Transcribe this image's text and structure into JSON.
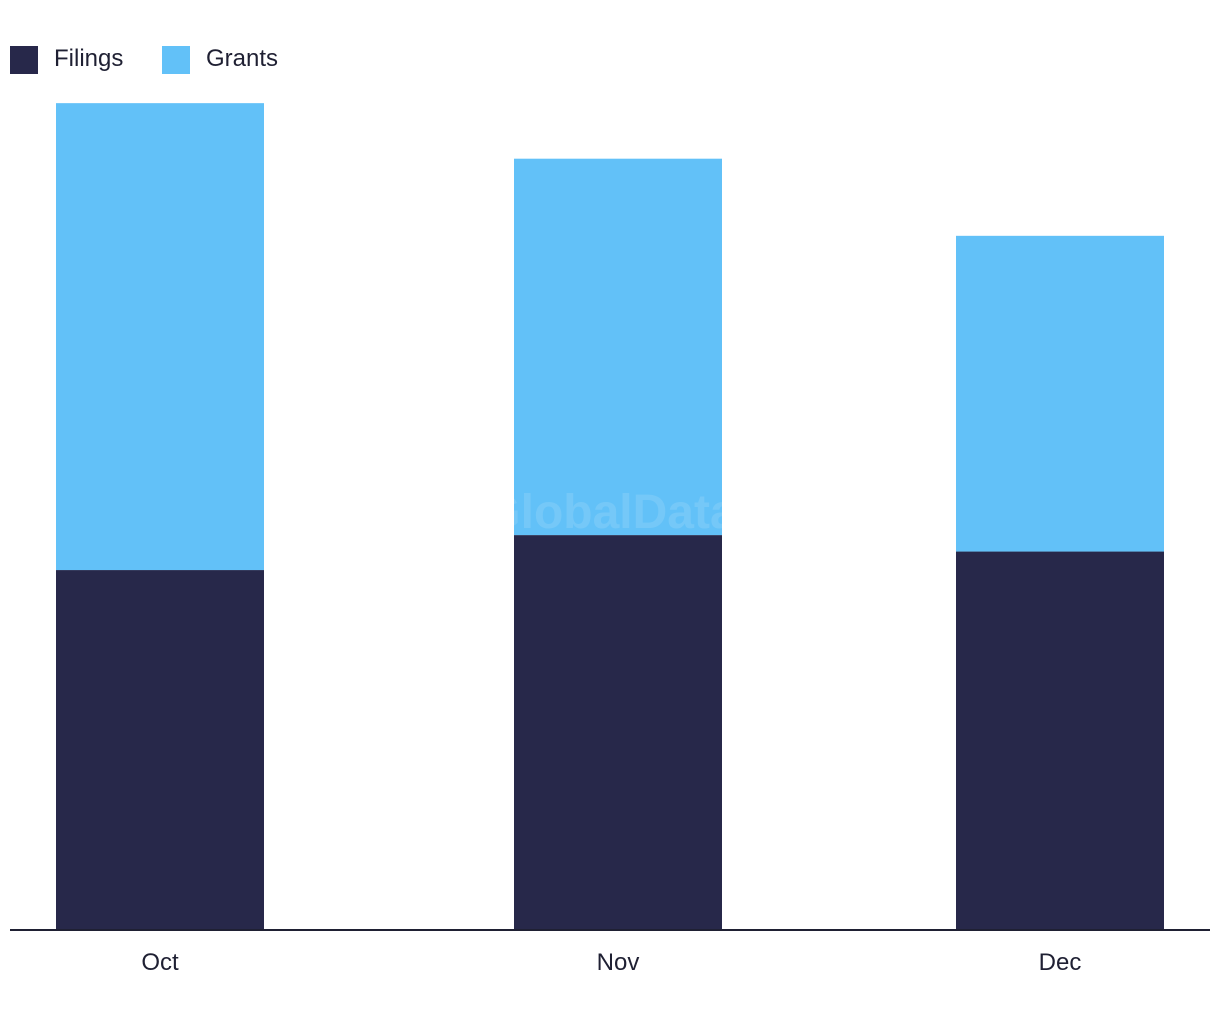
{
  "chart_data": {
    "type": "bar",
    "stacked": true,
    "categories": [
      "Oct",
      "Nov",
      "Dec"
    ],
    "series": [
      {
        "name": "Filings",
        "values": [
          35,
          38.4,
          36.8
        ],
        "color": "#27284a"
      },
      {
        "name": "Grants",
        "values": [
          45.4,
          36.6,
          30.7
        ],
        "color": "#62c1f8"
      }
    ],
    "ylim": [
      0,
      88
    ],
    "grid": false,
    "legend": "top-left",
    "title": "",
    "xlabel": "",
    "ylabel": ""
  },
  "watermark": "GlobalData",
  "axis_color": "#1f2033"
}
